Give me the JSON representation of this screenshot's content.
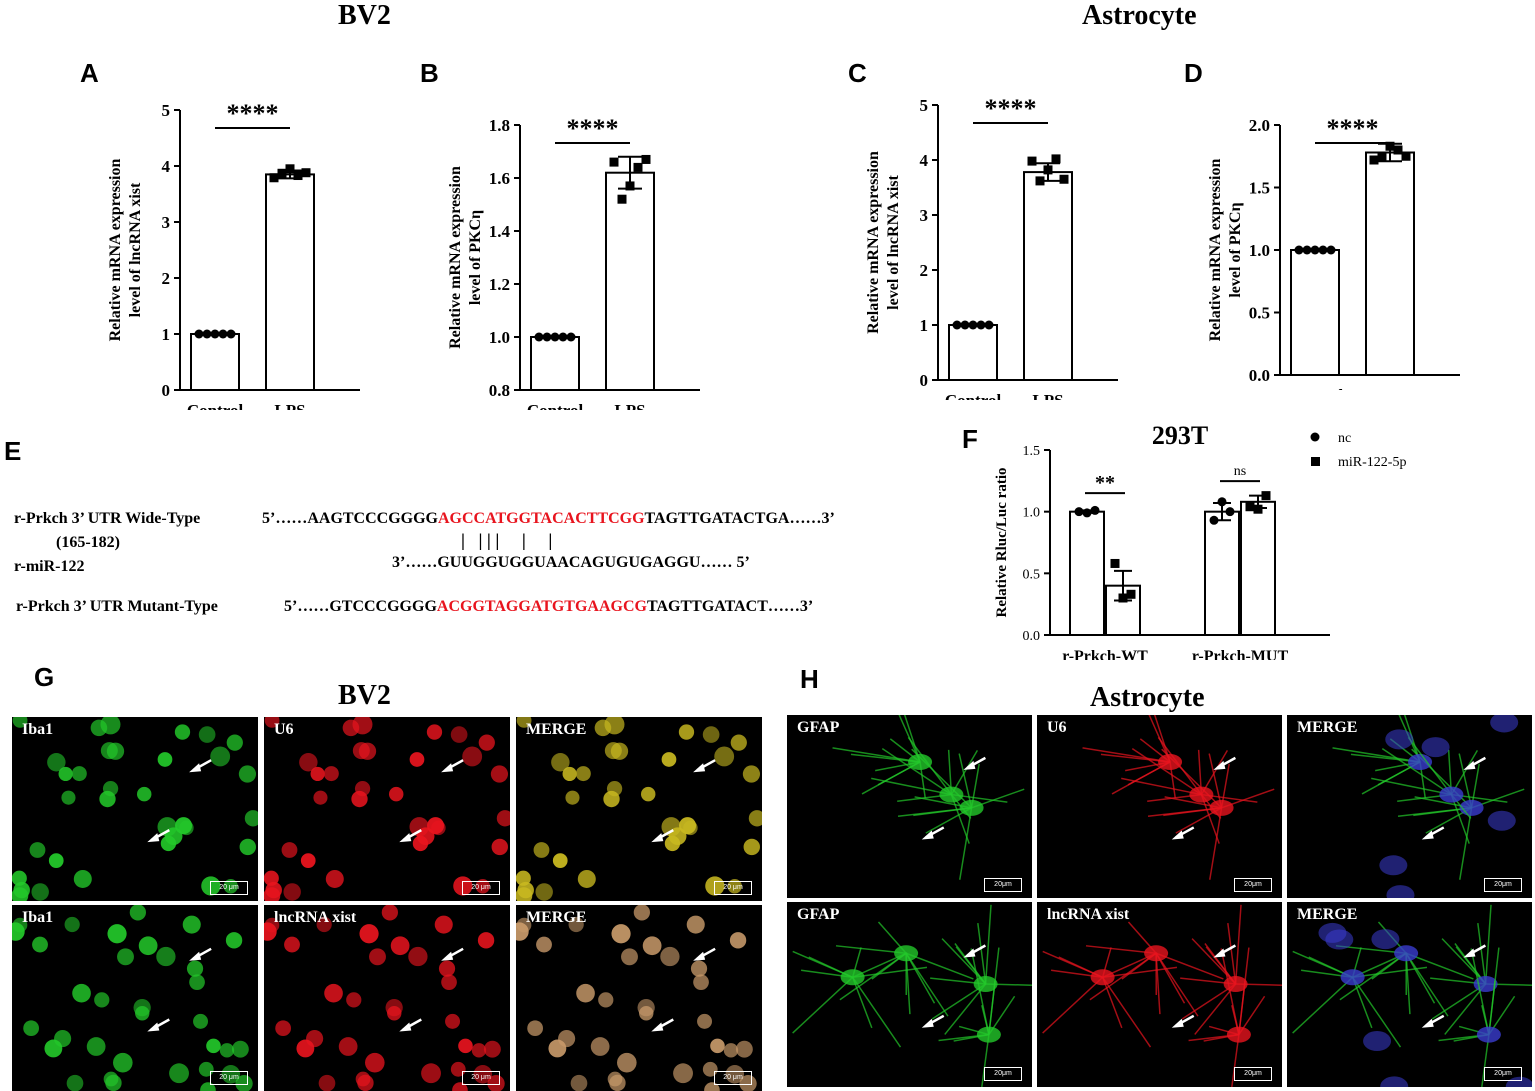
{
  "headings": {
    "bv2_top": "BV2",
    "astro_top": "Astrocyte",
    "bv2_mid": "BV2",
    "astro_mid": "Astrocyte"
  },
  "panel_letters": {
    "A": "A",
    "B": "B",
    "C": "C",
    "D": "D",
    "E": "E",
    "F": "F",
    "G": "G",
    "H": "H"
  },
  "chart_data": [
    {
      "id": "A",
      "type": "bar",
      "categories": [
        "Control",
        "LPS"
      ],
      "values": [
        1.0,
        3.85
      ],
      "points": [
        [
          1,
          1,
          1,
          1,
          1
        ],
        [
          3.79,
          3.87,
          3.95,
          3.83,
          3.88
        ]
      ],
      "errors": [
        0,
        0.07
      ],
      "ylabel": [
        "Relative mRNA expression",
        "level of lncRNA xist"
      ],
      "ylim": [
        0,
        5
      ],
      "yticks": [
        "0",
        "1",
        "2",
        "3",
        "4",
        "5"
      ],
      "significance": "****"
    },
    {
      "id": "B",
      "type": "bar",
      "categories": [
        "Control",
        "LPS"
      ],
      "values": [
        1.0,
        1.62
      ],
      "points": [
        [
          1,
          1,
          1,
          1,
          1
        ],
        [
          1.66,
          1.52,
          1.57,
          1.64,
          1.67
        ]
      ],
      "errors": [
        0,
        0.06
      ],
      "ylabel": [
        "Relative mRNA expression",
        "level of PKCη"
      ],
      "ylim": [
        0.8,
        1.8
      ],
      "yticks": [
        "0.8",
        "1.0",
        "1.2",
        "1.4",
        "1.6",
        "1.8"
      ],
      "significance": "****"
    },
    {
      "id": "C",
      "type": "bar",
      "categories": [
        "Control",
        "LPS"
      ],
      "values": [
        1.0,
        3.78
      ],
      "points": [
        [
          1,
          1,
          1,
          1,
          1
        ],
        [
          3.98,
          3.62,
          3.82,
          4.02,
          3.65
        ]
      ],
      "errors": [
        0,
        0.16
      ],
      "ylabel": [
        "Relative mRNA expression",
        "level of lncRNA xist"
      ],
      "ylim": [
        0,
        5
      ],
      "yticks": [
        "0",
        "1",
        "2",
        "3",
        "4",
        "5"
      ],
      "significance": "****"
    },
    {
      "id": "D",
      "type": "bar",
      "categories": [
        "Control",
        "LPS"
      ],
      "values": [
        1.0,
        1.78
      ],
      "points": [
        [
          1,
          1,
          1,
          1,
          1
        ],
        [
          1.72,
          1.74,
          1.83,
          1.8,
          1.75
        ]
      ],
      "errors": [
        0,
        0.07
      ],
      "ylabel": [
        "Relative mRNA expression",
        "level of PKCη"
      ],
      "ylim": [
        0,
        2.0
      ],
      "yticks": [
        "0.0",
        "0.5",
        "1.0",
        "1.5",
        "2.0"
      ],
      "significance": "****"
    },
    {
      "id": "F",
      "type": "bar",
      "title": "293T",
      "categories": [
        "r-Prkch-WT",
        "r-Prkch-MUT"
      ],
      "series": [
        {
          "name": "nc",
          "values": [
            1.0,
            1.0
          ],
          "errors": [
            0.01,
            0.07
          ],
          "points": [
            [
              1.0,
              0.99,
              1.01
            ],
            [
              0.93,
              1.08,
              1.0
            ]
          ]
        },
        {
          "name": "miR-122-5p",
          "values": [
            0.4,
            1.08
          ],
          "errors": [
            0.12,
            0.05
          ],
          "points": [
            [
              0.58,
              0.3,
              0.33
            ],
            [
              1.04,
              1.02,
              1.13
            ]
          ]
        }
      ],
      "ylabel": [
        "Relative Rluc/Luc ratio"
      ],
      "ylim": [
        0,
        1.5
      ],
      "yticks": [
        "0.0",
        "0.5",
        "1.0",
        "1.5"
      ],
      "significance": [
        "**",
        "ns"
      ],
      "legend": "top-right"
    }
  ],
  "sequences": {
    "wt_label": "r-Prkch 3’ UTR Wide-Type",
    "wt_range": "(165-182)",
    "wt_prefix": "5’……AAGTCCCGGGG",
    "wt_red": "AGCCATGGTACACTTCGG",
    "wt_suffix": "TAGTTGATACTGA……3’",
    "pairs": "|   | | |     |     |",
    "mir_label": "r-miR-122",
    "mir_seq": "3’……GUUGGUGGUAACAGUGUGAGGU…… 5’",
    "mut_label": "r-Prkch 3’ UTR Mutant-Type",
    "mut_prefix": "5’……GTCCCGGGG",
    "mut_red": "ACGGTAGGATGTGAAGCG",
    "mut_suffix": "TAGTTGATACT……3’"
  },
  "micrographs": {
    "G": [
      [
        "Iba1",
        "U6",
        "MERGE"
      ],
      [
        "Iba1",
        "lncRNA xist",
        "MERGE"
      ]
    ],
    "H": [
      [
        "GFAP",
        "U6",
        "MERGE"
      ],
      [
        "GFAP",
        "lncRNA xist",
        "MERGE"
      ]
    ],
    "scale_G": "20 μm",
    "scale_H": "20μm"
  },
  "colors": {
    "red": "#e8141e",
    "green": "#23c82a",
    "blue": "#3a3cd0"
  }
}
